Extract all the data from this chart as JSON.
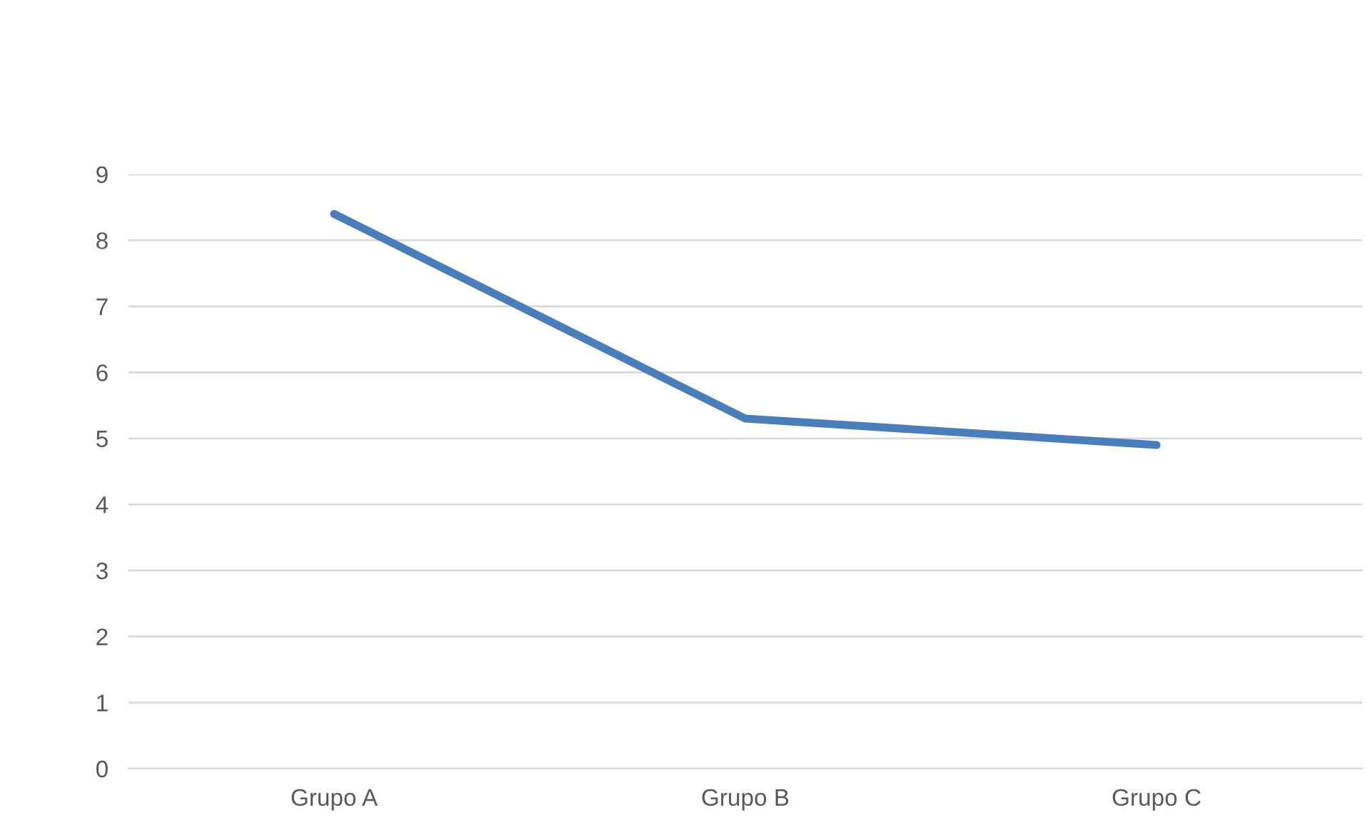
{
  "chart_data": {
    "type": "line",
    "categories": [
      "Grupo A",
      "Grupo B",
      "Grupo C"
    ],
    "series": [
      {
        "color": "#4a7ebb",
        "values": [
          8.4,
          5.3,
          4.9
        ]
      }
    ],
    "ylim": [
      0,
      9
    ],
    "yticks": [
      0,
      1,
      2,
      3,
      4,
      5,
      6,
      7,
      8,
      9
    ],
    "grid": "y",
    "legend": false,
    "marker": "none",
    "line_style": "solid"
  }
}
